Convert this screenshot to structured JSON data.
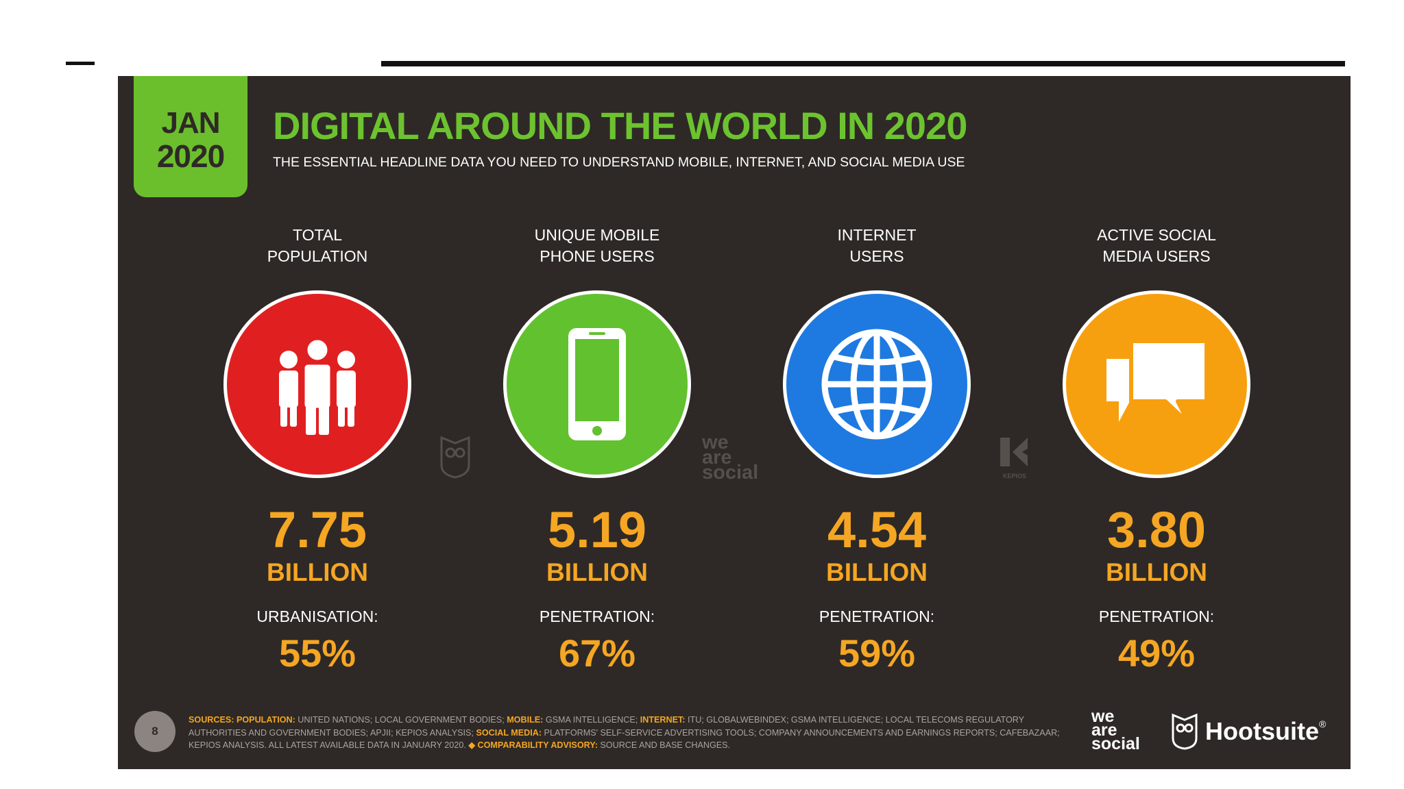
{
  "badge": {
    "month": "JAN",
    "year": "2020"
  },
  "title": "DIGITAL AROUND THE WORLD IN 2020",
  "subtitle": "THE ESSENTIAL HEADLINE DATA YOU NEED TO UNDERSTAND MOBILE, INTERNET, AND SOCIAL MEDIA USE",
  "stats": [
    {
      "label_line1": "TOTAL",
      "label_line2": "POPULATION",
      "icon": "people-icon",
      "color": "#e02020",
      "value": "7.75",
      "unit": "BILLION",
      "sub_label": "URBANISATION:",
      "percent": "55%"
    },
    {
      "label_line1": "UNIQUE MOBILE",
      "label_line2": "PHONE USERS",
      "icon": "mobile-phone-icon",
      "color": "#62c12f",
      "value": "5.19",
      "unit": "BILLION",
      "sub_label": "PENETRATION:",
      "percent": "67%"
    },
    {
      "label_line1": "INTERNET",
      "label_line2": "USERS",
      "icon": "globe-icon",
      "color": "#1e7ae0",
      "value": "4.54",
      "unit": "BILLION",
      "sub_label": "PENETRATION:",
      "percent": "59%"
    },
    {
      "label_line1": "ACTIVE SOCIAL",
      "label_line2": "MEDIA USERS",
      "icon": "speech-bubbles-icon",
      "color": "#f7a00f",
      "value": "3.80",
      "unit": "BILLION",
      "sub_label": "PENETRATION:",
      "percent": "49%"
    }
  ],
  "watermarks": {
    "we_are_social": [
      "we",
      "are",
      "social"
    ],
    "kepios": "KEPIOS"
  },
  "footer": {
    "page_number": "8",
    "sources_label": "SOURCES:",
    "sources_parts": [
      {
        "key": "POPULATION:",
        "text": " UNITED NATIONS; LOCAL GOVERNMENT BODIES; "
      },
      {
        "key": "MOBILE:",
        "text": " GSMA INTELLIGENCE; "
      },
      {
        "key": "INTERNET:",
        "text": " ITU; GLOBALWEBINDEX; GSMA INTELLIGENCE; LOCAL TELECOMS REGULATORY AUTHORITIES AND GOVERNMENT BODIES; APJII; KEPIOS ANALYSIS; "
      },
      {
        "key": "SOCIAL MEDIA:",
        "text": " PLATFORMS' SELF-SERVICE ADVERTISING TOOLS; COMPANY ANNOUNCEMENTS AND EARNINGS REPORTS; CAFEBAZAAR; KEPIOS ANALYSIS. ALL LATEST AVAILABLE DATA IN JANUARY 2020. "
      },
      {
        "key": "◆ COMPARABILITY ADVISORY:",
        "text": " SOURCE AND BASE CHANGES."
      }
    ],
    "logo_we_are_social": [
      "we",
      "are",
      "social"
    ],
    "logo_hootsuite": "Hootsuite",
    "hootsuite_mark": "®"
  },
  "colors": {
    "slide_bg": "#2e2926",
    "accent_green": "#6cc32f",
    "number_orange": "#f5a623"
  }
}
